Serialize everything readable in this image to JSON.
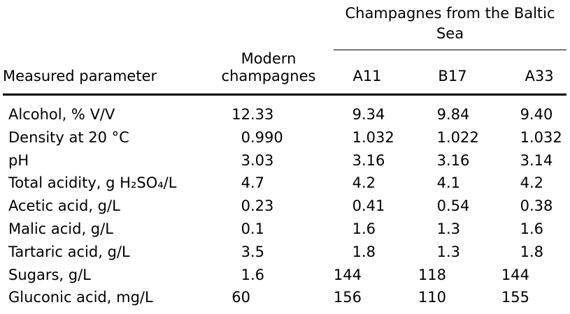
{
  "table": {
    "column_group_header": "Champagnes from the Baltic Sea",
    "measured_parameter_header": "Measured parameter",
    "modern_header": "Modern champagnes",
    "sample_columns": [
      "A11",
      "B17",
      "A33"
    ],
    "rows": [
      {
        "parameter": "Alcohol, % V/V",
        "values": [
          "12.33",
          "9.34",
          "9.84",
          "9.40"
        ]
      },
      {
        "parameter": "Density at 20 °C",
        "values": [
          "0.990",
          "1.032",
          "1.022",
          "1.032"
        ]
      },
      {
        "parameter": "pH",
        "values": [
          "3.03",
          "3.16",
          "3.16",
          "3.14"
        ]
      },
      {
        "parameter": "Total acidity, g H₂SO₄/L",
        "values": [
          "4.7",
          "4.2",
          "4.1",
          "4.2"
        ]
      },
      {
        "parameter": "Acetic acid, g/L",
        "values": [
          "0.23",
          "0.41",
          "0.54",
          "0.38"
        ]
      },
      {
        "parameter": "Malic acid, g/L",
        "values": [
          "0.1",
          "1.6",
          "1.3",
          "1.6"
        ]
      },
      {
        "parameter": "Tartaric acid, g/L",
        "values": [
          "3.5",
          "1.8",
          "1.3",
          "1.8"
        ]
      },
      {
        "parameter": "Sugars, g/L",
        "values": [
          "1.6",
          "144",
          "118",
          "144"
        ]
      },
      {
        "parameter": "Gluconic acid, mg/L",
        "values": [
          "60",
          "156",
          "110",
          "155"
        ]
      }
    ]
  },
  "chart_data": {
    "type": "table",
    "columns": [
      "Measured parameter",
      "Modern champagnes",
      "A11",
      "B17",
      "A33"
    ],
    "column_group": {
      "label": "Champagnes from the Baltic Sea",
      "members": [
        "A11",
        "B17",
        "A33"
      ]
    },
    "rows": [
      [
        "Alcohol, % V/V",
        12.33,
        9.34,
        9.84,
        9.4
      ],
      [
        "Density at 20 °C",
        0.99,
        1.032,
        1.022,
        1.032
      ],
      [
        "pH",
        3.03,
        3.16,
        3.16,
        3.14
      ],
      [
        "Total acidity, g H₂SO₄/L",
        4.7,
        4.2,
        4.1,
        4.2
      ],
      [
        "Acetic acid, g/L",
        0.23,
        0.41,
        0.54,
        0.38
      ],
      [
        "Malic acid, g/L",
        0.1,
        1.6,
        1.3,
        1.6
      ],
      [
        "Tartaric acid, g/L",
        3.5,
        1.8,
        1.3,
        1.8
      ],
      [
        "Sugars, g/L",
        1.6,
        144,
        118,
        144
      ],
      [
        "Gluconic acid, mg/L",
        60,
        156,
        110,
        155
      ]
    ]
  },
  "colors": {
    "text": "#000000",
    "background": "#ffffff",
    "rule": "#000000"
  }
}
